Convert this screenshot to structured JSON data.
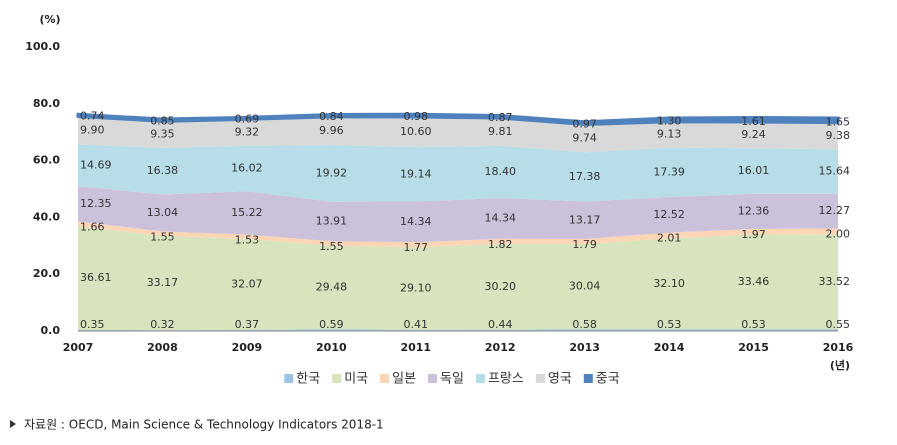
{
  "chart_data": {
    "type": "stacked_area",
    "y_unit": "(%)",
    "x_unit": "(년)",
    "source": "자료원 : OECD, Main Science & Technology Indicators 2018-1",
    "categories": [
      "2007",
      "2008",
      "2009",
      "2010",
      "2011",
      "2012",
      "2013",
      "2014",
      "2015",
      "2016"
    ],
    "ylim": [
      0,
      100
    ],
    "yticks": [
      {
        "value": 0,
        "label": "0.0"
      },
      {
        "value": 20,
        "label": "20.0"
      },
      {
        "value": 40,
        "label": "40.0"
      },
      {
        "value": 60,
        "label": "60.0"
      },
      {
        "value": 80,
        "label": "80.0"
      },
      {
        "value": 100,
        "label": "100.0"
      }
    ],
    "series": [
      {
        "name": "한국",
        "color": "#9dc3e6",
        "values": [
          0.35,
          0.32,
          0.37,
          0.59,
          0.41,
          0.44,
          0.58,
          0.53,
          0.53,
          0.55
        ],
        "value_labels": [
          "0.35",
          "0.32",
          "0.37",
          "0.59",
          "0.41",
          "0.44",
          "0.58",
          "0.53",
          "0.53",
          "0.55"
        ]
      },
      {
        "name": "미국",
        "color": "#d7e4bd",
        "values": [
          36.61,
          33.17,
          32.07,
          29.48,
          29.1,
          30.2,
          30.04,
          32.1,
          33.46,
          33.52
        ],
        "value_labels": [
          "36.61",
          "33.17",
          "32.07",
          "29.48",
          "29.10",
          "30.20",
          "30.04",
          "32.10",
          "33.46",
          "33.52"
        ]
      },
      {
        "name": "일본",
        "color": "#fcd5b5",
        "values": [
          1.66,
          1.55,
          1.53,
          1.55,
          1.77,
          1.82,
          1.79,
          2.01,
          1.97,
          2.0
        ],
        "value_labels": [
          "1.66",
          "1.55",
          "1.53",
          "1.55",
          "1.77",
          "1.82",
          "1.79",
          "2.01",
          "1.97",
          "2.00"
        ]
      },
      {
        "name": "독일",
        "color": "#ccc1da",
        "values": [
          12.35,
          13.04,
          15.22,
          13.91,
          14.34,
          14.34,
          13.17,
          12.52,
          12.36,
          12.27
        ],
        "value_labels": [
          "12.35",
          "13.04",
          "15.22",
          "13.91",
          "14.34",
          "14.34",
          "13.17",
          "12.52",
          "12.36",
          "12.27"
        ]
      },
      {
        "name": "프랑스",
        "color": "#b7dee8",
        "values": [
          14.69,
          16.38,
          16.02,
          19.92,
          19.14,
          18.4,
          17.38,
          17.39,
          16.01,
          15.64
        ],
        "value_labels": [
          "14.69",
          "16.38",
          "16.02",
          "19.92",
          "19.14",
          "18.40",
          "17.38",
          "17.39",
          "16.01",
          "15.64"
        ]
      },
      {
        "name": "영국",
        "color": "#d9d9d9",
        "values": [
          9.9,
          9.35,
          9.32,
          9.96,
          10.6,
          9.81,
          9.74,
          9.13,
          9.24,
          9.38
        ],
        "value_labels": [
          "9.90",
          "9.35",
          "9.32",
          "9.96",
          "10.60",
          "9.81",
          "9.74",
          "9.13",
          "9.24",
          "9.38"
        ]
      },
      {
        "name": "중국",
        "color": "#4f81bd",
        "values": [
          0.74,
          0.85,
          0.69,
          0.84,
          0.98,
          0.87,
          0.97,
          1.3,
          1.61,
          1.65
        ],
        "value_labels": [
          "0.74",
          "0.85",
          "0.69",
          "0.84",
          "0.98",
          "0.87",
          "0.97",
          "1.30",
          "1.61",
          "1.65"
        ]
      }
    ]
  }
}
